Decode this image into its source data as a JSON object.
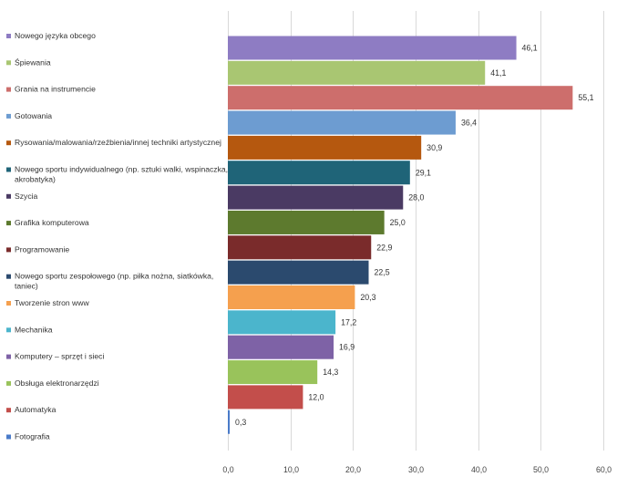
{
  "chart_data": {
    "type": "bar",
    "orientation": "horizontal",
    "title": "",
    "xlabel": "",
    "ylabel": "",
    "xlim": [
      0,
      60
    ],
    "x_ticks": [
      "0,0",
      "10,0",
      "20,0",
      "30,0",
      "40,0",
      "50,0",
      "60,0"
    ],
    "grid": true,
    "legend_position": "left",
    "categories": [
      [
        "Nowego języka obcego"
      ],
      [
        "Śpiewania"
      ],
      [
        "Grania na instrumencie"
      ],
      [
        "Gotowania"
      ],
      [
        "Rysowania/malowania/rzeźbienia/innej techniki artystycznej"
      ],
      [
        "Nowego sportu indywidualnego (np. sztuki walki, wspinaczka,",
        "akrobatyka)"
      ],
      [
        "Szycia"
      ],
      [
        "Grafika komputerowa"
      ],
      [
        "Programowanie"
      ],
      [
        "Nowego sportu zespołowego (np. piłka nożna, siatkówka,",
        "taniec)"
      ],
      [
        "Tworzenie stron www"
      ],
      [
        "Mechanika"
      ],
      [
        "Komputery – sprzęt i sieci"
      ],
      [
        "Obsługa elektronarzędzi"
      ],
      [
        "Automatyka"
      ],
      [
        "Fotografia"
      ]
    ],
    "values": [
      46.1,
      41.1,
      55.1,
      36.4,
      30.9,
      29.1,
      28.0,
      25.0,
      22.9,
      22.5,
      20.3,
      17.2,
      16.9,
      14.3,
      12.0,
      0.3
    ],
    "value_labels": [
      "46,1",
      "41,1",
      "55,1",
      "36,4",
      "30,9",
      "29,1",
      "28,0",
      "25,0",
      "22,9",
      "22,5",
      "20,3",
      "17,2",
      "16,9",
      "14,3",
      "12,0",
      "0,3"
    ],
    "colors": [
      "#8e7cc3",
      "#a9c672",
      "#cd6e6c",
      "#6d9cd1",
      "#b5580f",
      "#1f6478",
      "#4a3a63",
      "#5d7a2e",
      "#7a2b2b",
      "#2b4a6e",
      "#f5a04e",
      "#4bb5cc",
      "#7e62a6",
      "#99c35b",
      "#c34e4b",
      "#4a7bc9"
    ]
  }
}
